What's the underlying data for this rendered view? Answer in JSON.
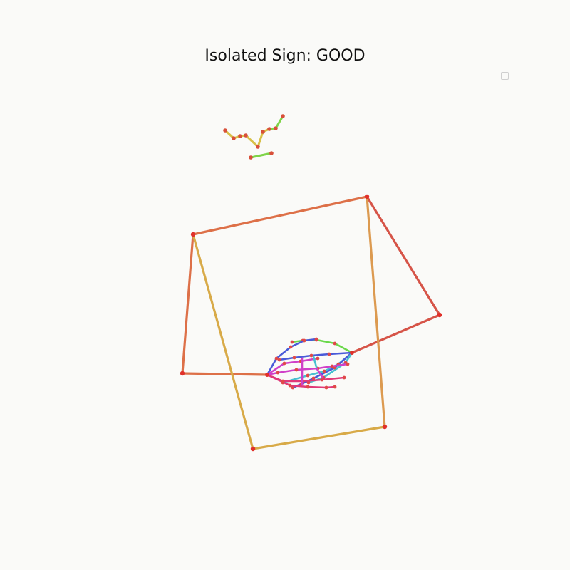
{
  "title": "Isolated Sign: GOOD",
  "colors": {
    "background": "#fafaf8",
    "joint": "#e0302a",
    "arm_orange": "#dd7048",
    "arm_red": "#d65448",
    "arm_gold": "#d8aa48",
    "face_green": "#7ed448",
    "face_yellow": "#d8c048",
    "hand_blue": "#4a5ad8",
    "hand_green": "#6ad84a",
    "hand_cyan": "#48c0d0",
    "hand_magenta": "#d040c8",
    "hand_pink": "#e03878"
  },
  "legend": {
    "icon": "empty-legend-box"
  }
}
